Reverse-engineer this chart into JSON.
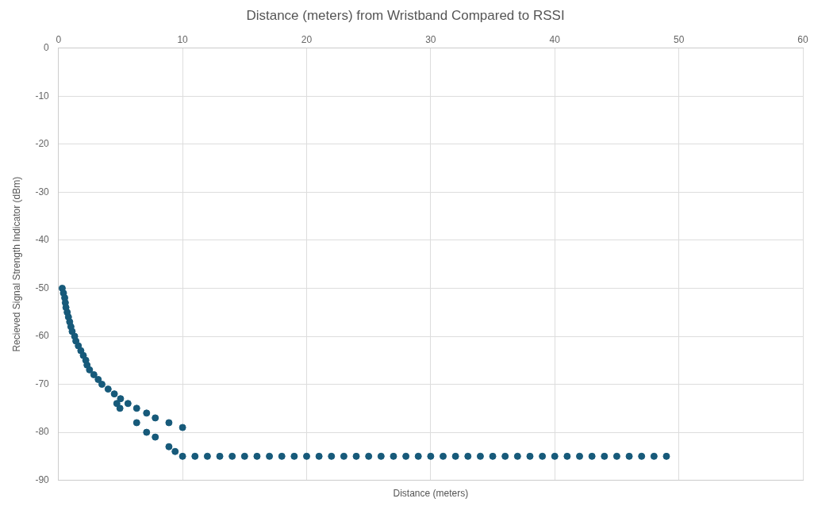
{
  "chart_data": {
    "type": "scatter",
    "title": "Distance (meters) from Wristband Compared to RSSI",
    "xlabel": "Distance (meters)",
    "ylabel": "Recieved Signal Strength Indicator (dBm)",
    "series": [
      {
        "color": "#175a7a",
        "x": [
          0.3,
          0.4,
          0.5,
          0.55,
          0.6,
          0.7,
          0.8,
          0.9,
          1.0,
          1.1,
          1.3,
          1.4,
          1.6,
          1.8,
          2.0,
          2.2,
          2.3,
          2.5,
          2.85,
          3.2,
          3.5,
          4.0,
          4.5,
          5.0,
          4.7,
          4.95,
          5.6,
          6.3,
          7.1,
          7.8,
          8.9,
          10,
          6.3,
          7.1,
          7.8,
          8.9,
          9.4,
          10,
          11,
          12,
          13,
          14,
          15,
          16,
          17,
          18,
          19,
          20,
          21,
          22,
          23,
          24,
          25,
          26,
          27,
          28,
          29,
          30,
          31,
          32,
          33,
          34,
          35,
          36,
          37,
          38,
          39,
          40,
          41,
          42,
          43,
          44,
          45,
          46,
          47,
          48,
          49
        ],
        "values": [
          -50,
          -51,
          -52,
          -53,
          -54,
          -55,
          -56,
          -57,
          -58,
          -59,
          -60,
          -61,
          -62,
          -63,
          -64,
          -65,
          -66,
          -67,
          -68,
          -69,
          -70,
          -71,
          -72,
          -73,
          -74,
          -75,
          -74,
          -75,
          -76,
          -77,
          -78,
          -79,
          -78,
          -80,
          -81,
          -83,
          -84,
          -85,
          -85,
          -85,
          -85,
          -85,
          -85,
          -85,
          -85,
          -85,
          -85,
          -85,
          -85,
          -85,
          -85,
          -85,
          -85,
          -85,
          -85,
          -85,
          -85,
          -85,
          -85,
          -85,
          -85,
          -85,
          -85,
          -85,
          -85,
          -85,
          -85,
          -85,
          -85,
          -85,
          -85,
          -85,
          -85,
          -85,
          -85,
          -85,
          -85
        ]
      }
    ],
    "xlim": [
      0,
      60
    ],
    "xticks": [
      0,
      10,
      20,
      30,
      40,
      50,
      60
    ],
    "ylim": [
      -90,
      0
    ],
    "yticks": [
      0,
      -10,
      -20,
      -30,
      -40,
      -50,
      -60,
      -70,
      -80,
      -90
    ],
    "grid": true,
    "legend": false,
    "marker": "circle"
  }
}
